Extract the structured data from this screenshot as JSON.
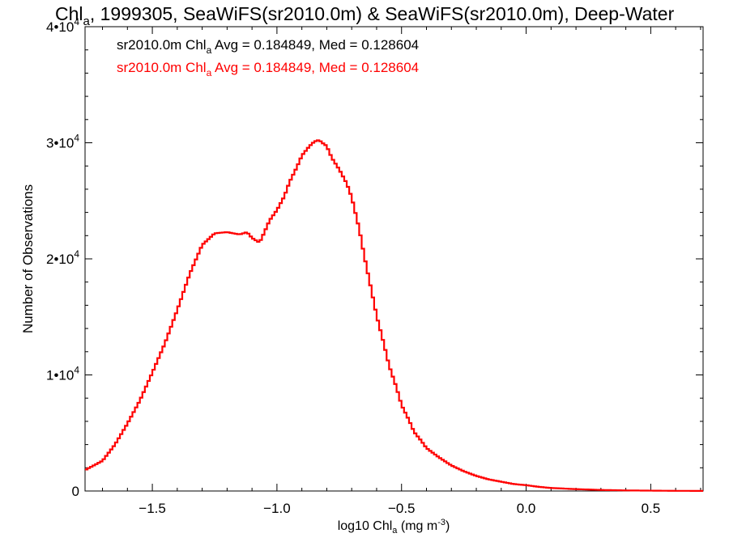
{
  "chart_data": {
    "type": "line",
    "title_main": "Chl",
    "title_sub": "a",
    "title_rest": ", 1999305, SeaWiFS(sr2010.0m) & SeaWiFS(sr2010.0m), Deep-Water",
    "xlabel_pre": "log10 Chl",
    "xlabel_sub": "a",
    "xlabel_unit": " (mg m",
    "xlabel_exp": "-3",
    "xlabel_close": ")",
    "ylabel": "Number of Observations",
    "xlim": [
      -1.77,
      0.71
    ],
    "ylim": [
      0,
      40000
    ],
    "x_ticks": [
      {
        "value": -1.5,
        "label": "−1.5"
      },
      {
        "value": -1.0,
        "label": "−1.0"
      },
      {
        "value": -0.5,
        "label": "−0.5"
      },
      {
        "value": 0.0,
        "label": "0.0"
      },
      {
        "value": 0.5,
        "label": "0.5"
      }
    ],
    "y_ticks": [
      {
        "value": 0,
        "base": "0",
        "exp": ""
      },
      {
        "value": 10000,
        "base": "1•10",
        "exp": "4"
      },
      {
        "value": 20000,
        "base": "2•10",
        "exp": "4"
      },
      {
        "value": 30000,
        "base": "3•10",
        "exp": "4"
      },
      {
        "value": 40000,
        "base": "4•10",
        "exp": "4"
      }
    ],
    "grid": false,
    "legend_position": "top-left",
    "legend": [
      {
        "pre": "sr2010.0m Chl",
        "sub": "a",
        "post": " Avg = 0.184849, Med = 0.128604",
        "color": "#000000"
      },
      {
        "pre": "sr2010.0m Chl",
        "sub": "a",
        "post": " Avg = 0.184849, Med = 0.128604",
        "color": "#ff0000"
      }
    ],
    "series": [
      {
        "color": "#ff0000",
        "style": "step",
        "x": [
          -1.77,
          -1.7,
          -1.65,
          -1.6,
          -1.55,
          -1.5,
          -1.45,
          -1.4,
          -1.35,
          -1.3,
          -1.25,
          -1.2,
          -1.15,
          -1.12,
          -1.1,
          -1.07,
          -1.05,
          -1.03,
          -1.0,
          -0.97,
          -0.95,
          -0.92,
          -0.9,
          -0.87,
          -0.85,
          -0.83,
          -0.82,
          -0.81,
          -0.8,
          -0.78,
          -0.75,
          -0.72,
          -0.7,
          -0.67,
          -0.65,
          -0.62,
          -0.6,
          -0.57,
          -0.55,
          -0.52,
          -0.5,
          -0.47,
          -0.45,
          -0.42,
          -0.4,
          -0.35,
          -0.3,
          -0.25,
          -0.2,
          -0.15,
          -0.1,
          -0.05,
          0.0,
          0.05,
          0.1,
          0.2,
          0.3,
          0.4,
          0.5,
          0.6,
          0.71
        ],
        "y": [
          1800,
          2600,
          4000,
          5800,
          7800,
          10200,
          12700,
          15600,
          18700,
          21200,
          22200,
          22300,
          22100,
          22300,
          21800,
          21400,
          22300,
          23300,
          24200,
          25400,
          26600,
          27900,
          28900,
          29700,
          30100,
          30250,
          30000,
          29900,
          29700,
          28700,
          27700,
          26500,
          25300,
          22600,
          20300,
          17200,
          15100,
          12600,
          10800,
          8900,
          7400,
          6100,
          5100,
          4300,
          3700,
          2900,
          2200,
          1700,
          1300,
          1000,
          800,
          600,
          500,
          360,
          260,
          160,
          90,
          50,
          30,
          15,
          8
        ]
      }
    ]
  }
}
